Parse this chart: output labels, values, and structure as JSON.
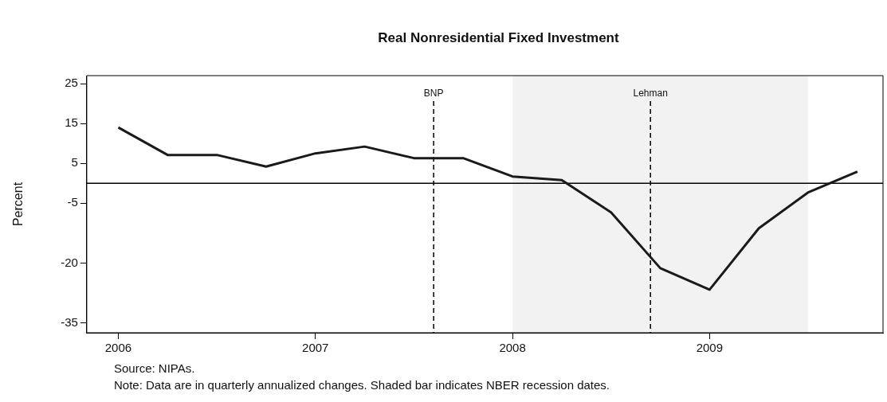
{
  "chart_data": {
    "type": "line",
    "title": "Real Nonresidential Fixed Investment",
    "ylabel": "Percent",
    "x": [
      2006,
      2006.25,
      2006.5,
      2006.75,
      2007,
      2007.25,
      2007.5,
      2007.75,
      2008,
      2008.25,
      2008.5,
      2008.75,
      2009,
      2009.25,
      2009.5,
      2009.75
    ],
    "series": [
      {
        "color": "#1a1a1a",
        "values": [
          14.0,
          7.1,
          7.1,
          4.2,
          7.5,
          9.2,
          6.3,
          6.3,
          1.7,
          0.8,
          -7.3,
          -21.3,
          -26.7,
          -11.3,
          -2.3,
          2.9
        ]
      }
    ],
    "xlim": [
      2005.84,
      2009.88
    ],
    "xticks": [
      2006,
      2007,
      2008,
      2009
    ],
    "ylim": [
      -37.5,
      27
    ],
    "yticks": [
      25,
      15,
      5,
      -5,
      -20,
      -35
    ],
    "ref_lines": [
      {
        "axis": "y",
        "value": 0,
        "color": "#000000",
        "line_style": "solid"
      },
      {
        "axis": "x",
        "value": 2007.6,
        "label": "BNP",
        "color": "#000000",
        "line_style": "dashed"
      },
      {
        "axis": "x",
        "value": 2008.7,
        "label": "Lehman",
        "color": "#000000",
        "line_style": "dashed"
      }
    ],
    "bands": [
      {
        "axis": "x",
        "from": 2008,
        "to": 2009.5,
        "color": "#f2f2f2"
      }
    ],
    "annotations": [
      "Source: NIPAs.",
      "Note: Data are in quarterly annualized changes. Shaded bar indicates NBER recession dates."
    ],
    "grid": false,
    "legend": false,
    "marker": "none",
    "line_style": "solid"
  }
}
